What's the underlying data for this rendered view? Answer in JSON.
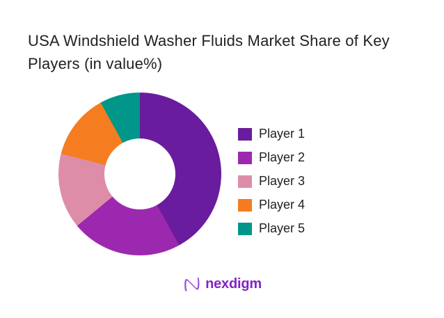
{
  "title": {
    "text": "USA Windshield Washer Fluids Market Share of Key Players (in value%)",
    "color": "#212121"
  },
  "chart_data": {
    "type": "pie",
    "subtype": "donut",
    "title": "USA Windshield Washer Fluids Market Share of Key Players (in value%)",
    "categories": [
      "Player 1",
      "Player 2",
      "Player 3",
      "Player 4",
      "Player 5"
    ],
    "values": [
      42,
      22,
      15,
      13,
      8
    ],
    "unit": "value %",
    "colors": [
      "#6A1C9E",
      "#9D28B0",
      "#DE8DA8",
      "#F57D20",
      "#00968A"
    ],
    "start_angle_deg": 0,
    "direction": "clockwise",
    "inner_radius_ratio": 0.44,
    "legend_position": "right",
    "data_labels": false,
    "background": "#ffffff"
  },
  "footer": {
    "logo_text": "nexdigm",
    "logo_color": "#8224C4",
    "logo_icon": "nexdigm-n-wave-icon"
  }
}
